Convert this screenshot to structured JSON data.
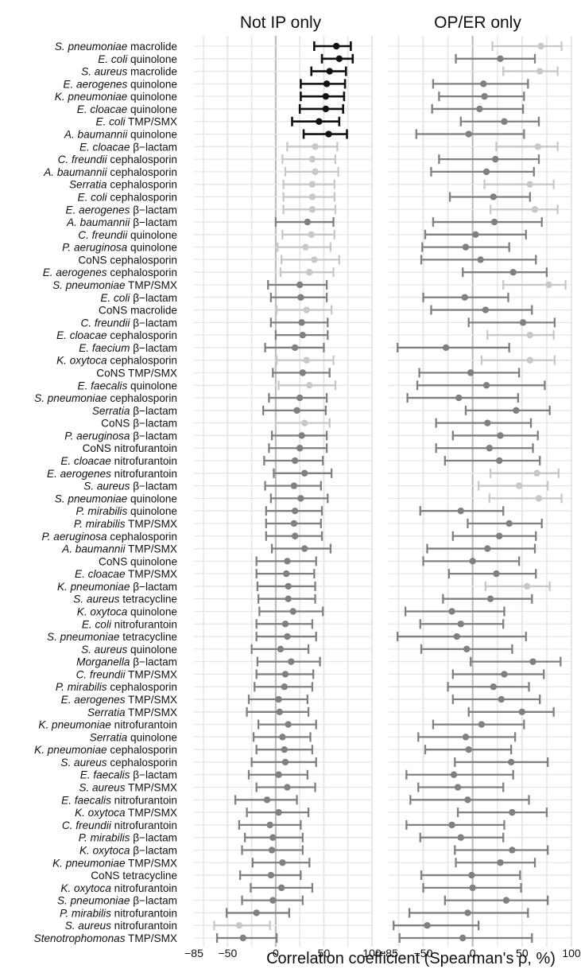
{
  "chart_data": {
    "type": "forest",
    "xlabel": "Correlation coefficient (Spearman's ρ, %)",
    "xlim": [
      -85,
      100
    ],
    "xticks": [
      -85,
      -50,
      0,
      50,
      100
    ],
    "xtick_labels": [
      "−85",
      "−50",
      "0",
      "50",
      "100"
    ],
    "grid": true,
    "zero_line": true,
    "panels": [
      {
        "title": "Not IP only"
      },
      {
        "title": "OP/ER only"
      }
    ],
    "colors": {
      "strong": "#111111",
      "mid": "#808080",
      "light": "#c8c8c8",
      "grid": "#e6e6e6",
      "zero": "#bdbdbd"
    },
    "rows": [
      {
        "it": "S. pneumoniae",
        "rest": " macrolide",
        "a": [
          63,
          40,
          78,
          "strong"
        ],
        "b": [
          69,
          20,
          90,
          "light"
        ]
      },
      {
        "it": "E. coli",
        "rest": " quinolone",
        "a": [
          66,
          48,
          80,
          "strong"
        ],
        "b": [
          28,
          -17,
          63,
          "mid"
        ]
      },
      {
        "it": "S. aureus",
        "rest": " macrolide",
        "a": [
          56,
          37,
          73,
          "strong"
        ],
        "b": [
          68,
          31,
          86,
          "light"
        ]
      },
      {
        "it": "E. aerogenes",
        "rest": " quinolone",
        "a": [
          53,
          26,
          72,
          "strong"
        ],
        "b": [
          11,
          -40,
          56,
          "mid"
        ]
      },
      {
        "it": "K. pneumoniae",
        "rest": " quinolone",
        "a": [
          52,
          26,
          71,
          "strong"
        ],
        "b": [
          12,
          -34,
          52,
          "mid"
        ]
      },
      {
        "it": "E. cloacae",
        "rest": " quinolone",
        "a": [
          52,
          25,
          70,
          "strong"
        ],
        "b": [
          7,
          -41,
          51,
          "mid"
        ]
      },
      {
        "it": "E. coli",
        "rest": " TMP/SMX",
        "a": [
          45,
          17,
          66,
          "strong"
        ],
        "b": [
          32,
          -12,
          67,
          "mid"
        ]
      },
      {
        "it": "A. baumannii",
        "rest": " quinolone",
        "a": [
          55,
          29,
          74,
          "strong"
        ],
        "b": [
          -4,
          -57,
          52,
          "mid"
        ]
      },
      {
        "it": "E. cloacae",
        "rest": " β−lactam",
        "a": [
          41,
          12,
          64,
          "light"
        ],
        "b": [
          66,
          24,
          86,
          "light"
        ]
      },
      {
        "it": "C. freundii",
        "rest": " cephalosporin",
        "a": [
          38,
          7,
          62,
          "light"
        ],
        "b": [
          23,
          -34,
          67,
          "mid"
        ]
      },
      {
        "it": "A. baumannii",
        "rest": " cephalosporin",
        "a": [
          41,
          10,
          65,
          "light"
        ],
        "b": [
          14,
          -42,
          62,
          "mid"
        ]
      },
      {
        "it": "Serratia",
        "rest": " cephalosporin",
        "a": [
          38,
          8,
          61,
          "light"
        ],
        "b": [
          58,
          12,
          82,
          "light"
        ]
      },
      {
        "it": "E. coli",
        "rest": " cephalosporin",
        "a": [
          38,
          8,
          61,
          "light"
        ],
        "b": [
          21,
          -23,
          58,
          "mid"
        ]
      },
      {
        "it": "E. aerogenes",
        "rest": " β−lactam",
        "a": [
          38,
          8,
          62,
          "light"
        ],
        "b": [
          63,
          18,
          86,
          "light"
        ]
      },
      {
        "it": "A. baumannii",
        "rest": " β−lactam",
        "a": [
          33,
          0,
          60,
          "mid"
        ],
        "b": [
          22,
          -40,
          70,
          "mid"
        ]
      },
      {
        "it": "C. freundii",
        "rest": " quinolone",
        "a": [
          37,
          7,
          61,
          "light"
        ],
        "b": [
          3,
          -48,
          54,
          "mid"
        ]
      },
      {
        "it": "P. aeruginosa",
        "rest": " quinolone",
        "a": [
          31,
          2,
          57,
          "light"
        ],
        "b": [
          -7,
          -51,
          37,
          "mid"
        ]
      },
      {
        "it": "",
        "rest": "CoNS cephalosporin",
        "a": [
          40,
          6,
          66,
          "light"
        ],
        "b": [
          8,
          -52,
          64,
          "mid"
        ]
      },
      {
        "it": "E. aerogenes",
        "rest": " cephalosporin",
        "a": [
          35,
          5,
          60,
          "light"
        ],
        "b": [
          41,
          -10,
          75,
          "mid"
        ]
      },
      {
        "it": "S. pneumoniae",
        "rest": " TMP/SMX",
        "a": [
          25,
          -8,
          53,
          "mid"
        ],
        "b": [
          77,
          31,
          94,
          "light"
        ]
      },
      {
        "it": "E. coli",
        "rest": " β−lactam",
        "a": [
          26,
          -5,
          53,
          "mid"
        ],
        "b": [
          -8,
          -50,
          36,
          "mid"
        ]
      },
      {
        "it": "",
        "rest": "CoNS macrolide",
        "a": [
          32,
          1,
          58,
          "light"
        ],
        "b": [
          13,
          -42,
          60,
          "mid"
        ]
      },
      {
        "it": "C. freundii",
        "rest": " β−lactam",
        "a": [
          27,
          -5,
          54,
          "mid"
        ],
        "b": [
          51,
          -4,
          83,
          "mid"
        ]
      },
      {
        "it": "E. cloacae",
        "rest": " cephalosporin",
        "a": [
          28,
          0,
          54,
          "mid"
        ],
        "b": [
          58,
          15,
          82,
          "light"
        ]
      },
      {
        "it": "E. faecium",
        "rest": " β−lactam",
        "a": [
          20,
          -11,
          50,
          "mid"
        ],
        "b": [
          -27,
          -76,
          37,
          "mid"
        ]
      },
      {
        "it": "K. oxytoca",
        "rest": " cephalosporin",
        "a": [
          32,
          1,
          60,
          "light"
        ],
        "b": [
          58,
          9,
          83,
          "light"
        ]
      },
      {
        "it": "",
        "rest": "CoNS TMP/SMX",
        "a": [
          28,
          -3,
          56,
          "mid"
        ],
        "b": [
          -2,
          -54,
          47,
          "mid"
        ]
      },
      {
        "it": "E. faecalis",
        "rest": " quinolone",
        "a": [
          35,
          3,
          62,
          "light"
        ],
        "b": [
          14,
          -56,
          73,
          "mid"
        ]
      },
      {
        "it": "S. pneumoniae",
        "rest": " cephalosporin",
        "a": [
          25,
          -7,
          53,
          "mid"
        ],
        "b": [
          -14,
          -66,
          46,
          "mid"
        ]
      },
      {
        "it": "Serratia",
        "rest": " β−lactam",
        "a": [
          22,
          -13,
          52,
          "mid"
        ],
        "b": [
          44,
          -7,
          78,
          "mid"
        ]
      },
      {
        "it": "",
        "rest": "CoNS β−lactam",
        "a": [
          30,
          0,
          56,
          "light"
        ],
        "b": [
          15,
          -37,
          59,
          "mid"
        ]
      },
      {
        "it": "P. aeruginosa",
        "rest": " β−lactam",
        "a": [
          27,
          -4,
          53,
          "mid"
        ],
        "b": [
          28,
          -20,
          66,
          "mid"
        ]
      },
      {
        "it": "",
        "rest": "CoNS nitrofurantoin",
        "a": [
          25,
          -7,
          53,
          "mid"
        ],
        "b": [
          17,
          -37,
          61,
          "mid"
        ]
      },
      {
        "it": "E. cloacae",
        "rest": " nitrofurantoin",
        "a": [
          20,
          -12,
          49,
          "mid"
        ],
        "b": [
          27,
          -28,
          68,
          "mid"
        ]
      },
      {
        "it": "E. aerogenes",
        "rest": " nitrofurantoin",
        "a": [
          30,
          -2,
          58,
          "mid"
        ],
        "b": [
          65,
          18,
          87,
          "light"
        ]
      },
      {
        "it": "S. aureus",
        "rest": " β−lactam",
        "a": [
          19,
          -11,
          47,
          "mid"
        ],
        "b": [
          47,
          6,
          76,
          "light"
        ]
      },
      {
        "it": "S. pneumoniae",
        "rest": " quinolone",
        "a": [
          26,
          -5,
          54,
          "mid"
        ],
        "b": [
          67,
          17,
          90,
          "light"
        ]
      },
      {
        "it": "P. mirabilis",
        "rest": " quinolone",
        "a": [
          20,
          -10,
          48,
          "mid"
        ],
        "b": [
          -12,
          -53,
          31,
          "mid"
        ]
      },
      {
        "it": "P. mirabilis",
        "rest": " TMP/SMX",
        "a": [
          19,
          -10,
          47,
          "mid"
        ],
        "b": [
          37,
          -5,
          70,
          "mid"
        ]
      },
      {
        "it": "P. aeruginosa",
        "rest": " cephalosporin",
        "a": [
          20,
          -10,
          48,
          "mid"
        ],
        "b": [
          27,
          -20,
          64,
          "mid"
        ]
      },
      {
        "it": "A. baumannii",
        "rest": " TMP/SMX",
        "a": [
          30,
          -4,
          57,
          "mid"
        ],
        "b": [
          15,
          -46,
          63,
          "mid"
        ]
      },
      {
        "it": "",
        "rest": "CoNS quinolone",
        "a": [
          12,
          -20,
          42,
          "mid"
        ],
        "b": [
          0,
          -50,
          47,
          "mid"
        ]
      },
      {
        "it": "E. cloacae",
        "rest": " TMP/SMX",
        "a": [
          11,
          -20,
          40,
          "mid"
        ],
        "b": [
          24,
          -24,
          64,
          "mid"
        ]
      },
      {
        "it": "K. pneumoniae",
        "rest": " β−lactam",
        "a": [
          13,
          -19,
          41,
          "mid"
        ],
        "b": [
          55,
          13,
          78,
          "light"
        ]
      },
      {
        "it": "S. aureus",
        "rest": " tetracycline",
        "a": [
          13,
          -18,
          41,
          "mid"
        ],
        "b": [
          18,
          -30,
          60,
          "mid"
        ]
      },
      {
        "it": "K. oxytoca",
        "rest": " quinolone",
        "a": [
          18,
          -17,
          49,
          "mid"
        ],
        "b": [
          -21,
          -68,
          32,
          "mid"
        ]
      },
      {
        "it": "E. coli",
        "rest": " nitrofurantoin",
        "a": [
          10,
          -20,
          38,
          "mid"
        ],
        "b": [
          -12,
          -53,
          31,
          "mid"
        ]
      },
      {
        "it": "S. pneumoniae",
        "rest": " tetracycline",
        "a": [
          12,
          -20,
          42,
          "mid"
        ],
        "b": [
          -16,
          -76,
          54,
          "mid"
        ]
      },
      {
        "it": "S. aureus",
        "rest": " quinolone",
        "a": [
          5,
          -25,
          34,
          "mid"
        ],
        "b": [
          -6,
          -52,
          40,
          "mid"
        ]
      },
      {
        "it": "Morganella",
        "rest": " β−lactam",
        "a": [
          16,
          -19,
          46,
          "mid"
        ],
        "b": [
          61,
          -2,
          89,
          "mid"
        ]
      },
      {
        "it": "C. freundii",
        "rest": " TMP/SMX",
        "a": [
          10,
          -20,
          39,
          "mid"
        ],
        "b": [
          32,
          -20,
          72,
          "mid"
        ]
      },
      {
        "it": "P. mirabilis",
        "rest": " cephalosporin",
        "a": [
          9,
          -22,
          38,
          "mid"
        ],
        "b": [
          21,
          -25,
          57,
          "mid"
        ]
      },
      {
        "it": "E. aerogenes",
        "rest": " TMP/SMX",
        "a": [
          3,
          -28,
          33,
          "mid"
        ],
        "b": [
          29,
          -20,
          68,
          "mid"
        ]
      },
      {
        "it": "Serratia",
        "rest": " TMP/SMX",
        "a": [
          4,
          -30,
          34,
          "mid"
        ],
        "b": [
          50,
          -4,
          82,
          "mid"
        ]
      },
      {
        "it": "K. pneumoniae",
        "rest": " nitrofurantoin",
        "a": [
          13,
          -18,
          42,
          "mid"
        ],
        "b": [
          9,
          -40,
          52,
          "mid"
        ]
      },
      {
        "it": "Serratia",
        "rest": " quinolone",
        "a": [
          7,
          -23,
          36,
          "mid"
        ],
        "b": [
          -7,
          -55,
          43,
          "mid"
        ]
      },
      {
        "it": "K. pneumoniae",
        "rest": " cephalosporin",
        "a": [
          9,
          -20,
          38,
          "mid"
        ],
        "b": [
          -4,
          -48,
          39,
          "mid"
        ]
      },
      {
        "it": "S. aureus",
        "rest": " cephalosporin",
        "a": [
          10,
          -25,
          42,
          "mid"
        ],
        "b": [
          39,
          -18,
          76,
          "mid"
        ]
      },
      {
        "it": "E. faecalis",
        "rest": " β−lactam",
        "a": [
          3,
          -28,
          33,
          "mid"
        ],
        "b": [
          -19,
          -67,
          41,
          "mid"
        ]
      },
      {
        "it": "S. aureus",
        "rest": " TMP/SMX",
        "a": [
          12,
          -20,
          41,
          "mid"
        ],
        "b": [
          -15,
          -55,
          31,
          "mid"
        ]
      },
      {
        "it": "E. faecalis",
        "rest": " nitrofurantoin",
        "a": [
          -9,
          -42,
          22,
          "mid"
        ],
        "b": [
          -5,
          -63,
          57,
          "mid"
        ]
      },
      {
        "it": "K. oxytoca",
        "rest": " TMP/SMX",
        "a": [
          3,
          -30,
          34,
          "mid"
        ],
        "b": [
          40,
          -15,
          75,
          "mid"
        ]
      },
      {
        "it": "C. freundii",
        "rest": " nitrofurantoin",
        "a": [
          -6,
          -38,
          26,
          "mid"
        ],
        "b": [
          -21,
          -67,
          32,
          "mid"
        ]
      },
      {
        "it": "P. mirabilis",
        "rest": " β−lactam",
        "a": [
          -3,
          -32,
          28,
          "mid"
        ],
        "b": [
          -12,
          -53,
          31,
          "mid"
        ]
      },
      {
        "it": "K. oxytoca",
        "rest": " β−lactam",
        "a": [
          -4,
          -35,
          28,
          "mid"
        ],
        "b": [
          40,
          -18,
          76,
          "mid"
        ]
      },
      {
        "it": "K. pneumoniae",
        "rest": " TMP/SMX",
        "a": [
          7,
          -24,
          35,
          "mid"
        ],
        "b": [
          28,
          -17,
          63,
          "mid"
        ]
      },
      {
        "it": "",
        "rest": "CoNS tetracycline",
        "a": [
          -5,
          -37,
          26,
          "mid"
        ],
        "b": [
          -1,
          -52,
          48,
          "mid"
        ]
      },
      {
        "it": "K. oxytoca",
        "rest": " nitrofurantoin",
        "a": [
          6,
          -26,
          38,
          "mid"
        ],
        "b": [
          0,
          -50,
          49,
          "mid"
        ]
      },
      {
        "it": "S. pneumoniae",
        "rest": " β−lactam",
        "a": [
          -3,
          -35,
          28,
          "mid"
        ],
        "b": [
          34,
          -28,
          76,
          "mid"
        ]
      },
      {
        "it": "P. mirabilis",
        "rest": " nitrofurantoin",
        "a": [
          -20,
          -51,
          14,
          "mid"
        ],
        "b": [
          -5,
          -64,
          56,
          "mid"
        ]
      },
      {
        "it": "S. aureus",
        "rest": " nitrofurantoin",
        "a": [
          -38,
          -64,
          -6,
          "light"
        ],
        "b": [
          -46,
          -80,
          6,
          "mid"
        ]
      },
      {
        "it": "Stenotrophomonas",
        "rest": " TMP/SMX",
        "a": [
          -34,
          -61,
          1,
          "mid"
        ],
        "b": [
          -10,
          -74,
          60,
          "mid"
        ]
      }
    ]
  }
}
